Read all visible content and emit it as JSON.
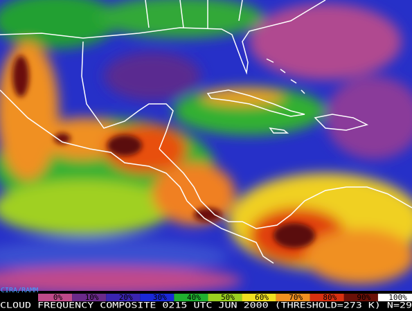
{
  "credit": "CIRA/RAMM",
  "legend": [
    {
      "label": "0%",
      "color": "#c04a8a"
    },
    {
      "label": "10%",
      "color": "#6a2a8a"
    },
    {
      "label": "20%",
      "color": "#3a24b0"
    },
    {
      "label": "30%",
      "color": "#1a28d8"
    },
    {
      "label": "40%",
      "color": "#20b030"
    },
    {
      "label": "50%",
      "color": "#9ad020"
    },
    {
      "label": "60%",
      "color": "#f0e020"
    },
    {
      "label": "70%",
      "color": "#f09020"
    },
    {
      "label": "80%",
      "color": "#d83010"
    },
    {
      "label": "90%",
      "color": "#6a1008"
    },
    {
      "label": "100%",
      "color": "#ffffff"
    }
  ],
  "caption": "CLOUD FREQUENCY COMPOSITE 0215 UTC JUN 2000 (THRESHOLD=273 K) N=29"
}
